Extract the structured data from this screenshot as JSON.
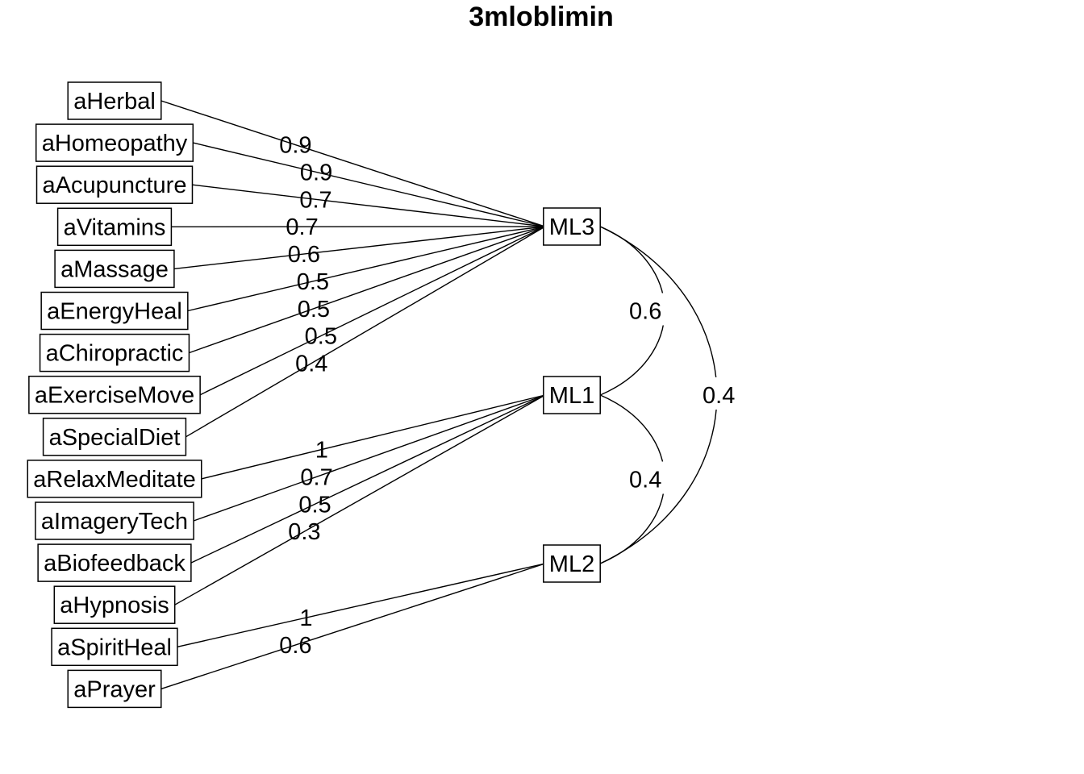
{
  "title": "3mloblimin",
  "factors": [
    {
      "id": "ML3",
      "label": "ML3"
    },
    {
      "id": "ML1",
      "label": "ML1"
    },
    {
      "id": "ML2",
      "label": "ML2"
    }
  ],
  "variables": [
    {
      "id": "aHerbal",
      "label": "aHerbal"
    },
    {
      "id": "aHomeopathy",
      "label": "aHomeopathy"
    },
    {
      "id": "aAcupuncture",
      "label": "aAcupuncture"
    },
    {
      "id": "aVitamins",
      "label": "aVitamins"
    },
    {
      "id": "aMassage",
      "label": "aMassage"
    },
    {
      "id": "aEnergyHeal",
      "label": "aEnergyHeal"
    },
    {
      "id": "aChiropractic",
      "label": "aChiropractic"
    },
    {
      "id": "aExerciseMove",
      "label": "aExerciseMove"
    },
    {
      "id": "aSpecialDiet",
      "label": "aSpecialDiet"
    },
    {
      "id": "aRelaxMeditate",
      "label": "aRelaxMeditate"
    },
    {
      "id": "aImageryTech",
      "label": "aImageryTech"
    },
    {
      "id": "aBiofeedback",
      "label": "aBiofeedback"
    },
    {
      "id": "aHypnosis",
      "label": "aHypnosis"
    },
    {
      "id": "aSpiritHeal",
      "label": "aSpiritHeal"
    },
    {
      "id": "aPrayer",
      "label": "aPrayer"
    }
  ],
  "loadings": [
    {
      "from": "ML3",
      "to": "aHerbal",
      "label": "0.9"
    },
    {
      "from": "ML3",
      "to": "aHomeopathy",
      "label": "0.9"
    },
    {
      "from": "ML3",
      "to": "aAcupuncture",
      "label": "0.7"
    },
    {
      "from": "ML3",
      "to": "aVitamins",
      "label": "0.7"
    },
    {
      "from": "ML3",
      "to": "aMassage",
      "label": "0.6"
    },
    {
      "from": "ML3",
      "to": "aEnergyHeal",
      "label": "0.5"
    },
    {
      "from": "ML3",
      "to": "aChiropractic",
      "label": "0.5"
    },
    {
      "from": "ML3",
      "to": "aExerciseMove",
      "label": "0.5"
    },
    {
      "from": "ML3",
      "to": "aSpecialDiet",
      "label": "0.4"
    },
    {
      "from": "ML1",
      "to": "aRelaxMeditate",
      "label": "1"
    },
    {
      "from": "ML1",
      "to": "aImageryTech",
      "label": "0.7"
    },
    {
      "from": "ML1",
      "to": "aBiofeedback",
      "label": "0.5"
    },
    {
      "from": "ML1",
      "to": "aHypnosis",
      "label": "0.3"
    },
    {
      "from": "ML2",
      "to": "aSpiritHeal",
      "label": "1"
    },
    {
      "from": "ML2",
      "to": "aPrayer",
      "label": "0.6"
    }
  ],
  "correlations": [
    {
      "from": "ML3",
      "to": "ML1",
      "label": "0.6"
    },
    {
      "from": "ML1",
      "to": "ML2",
      "label": "0.4"
    },
    {
      "from": "ML3",
      "to": "ML2",
      "label": "0.4"
    }
  ]
}
